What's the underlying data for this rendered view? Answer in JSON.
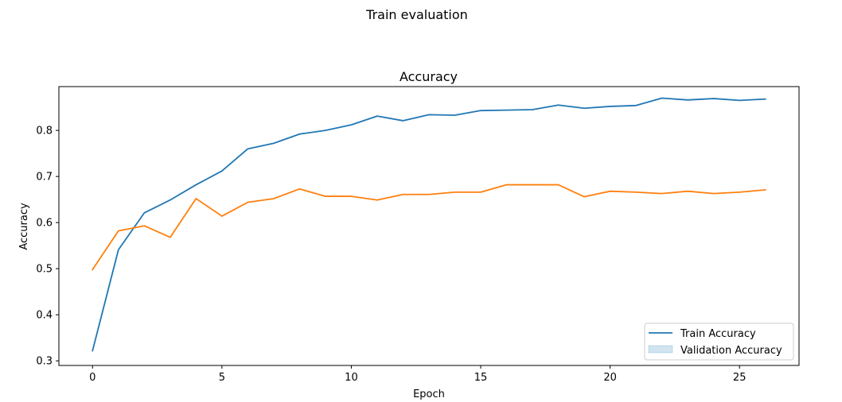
{
  "suptitle": "Train evaluation",
  "chart_data": {
    "type": "line",
    "title": "Accuracy",
    "xlabel": "Epoch",
    "ylabel": "Accuracy",
    "xlim": [
      -1.3,
      27.3
    ],
    "ylim": [
      0.29,
      0.895
    ],
    "xticks": [
      0,
      5,
      10,
      15,
      20,
      25
    ],
    "yticks": [
      0.3,
      0.4,
      0.5,
      0.6,
      0.7,
      0.8
    ],
    "x": [
      0,
      1,
      2,
      3,
      4,
      5,
      6,
      7,
      8,
      9,
      10,
      11,
      12,
      13,
      14,
      15,
      16,
      17,
      18,
      19,
      20,
      21,
      22,
      23,
      24,
      25,
      26
    ],
    "series": [
      {
        "name": "Train Accuracy",
        "color": "#1f77b4",
        "values": [
          0.322,
          0.541,
          0.621,
          0.649,
          0.682,
          0.712,
          0.76,
          0.772,
          0.792,
          0.8,
          0.812,
          0.831,
          0.821,
          0.834,
          0.833,
          0.843,
          0.844,
          0.845,
          0.855,
          0.848,
          0.852,
          0.854,
          0.87,
          0.866,
          0.869,
          0.865,
          0.868
        ]
      },
      {
        "name": "",
        "color": "#ff7f0e",
        "values": [
          0.498,
          0.582,
          0.593,
          0.568,
          0.652,
          0.614,
          0.644,
          0.652,
          0.673,
          0.657,
          0.657,
          0.649,
          0.661,
          0.661,
          0.666,
          0.666,
          0.682,
          0.682,
          0.682,
          0.656,
          0.668,
          0.666,
          0.663,
          0.668,
          0.663,
          0.666,
          0.671
        ]
      }
    ],
    "legend": {
      "position": "lower-right",
      "entries": [
        {
          "label": "Train Accuracy",
          "kind": "line",
          "color": "#1f77b4"
        },
        {
          "label": "Validation Accuracy",
          "kind": "patch",
          "color": "#1f77b4"
        }
      ]
    },
    "grid": false
  }
}
